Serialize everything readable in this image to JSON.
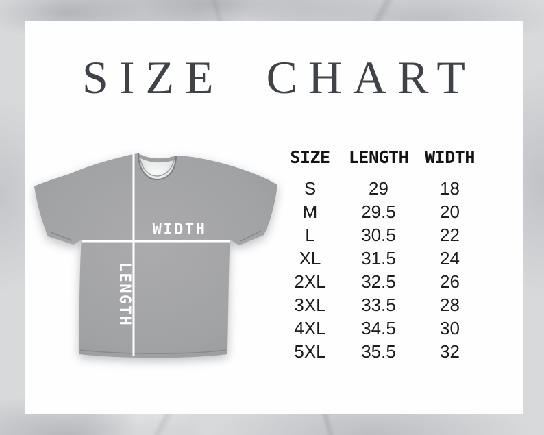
{
  "page": {
    "title": "SIZE CHART"
  },
  "shirt": {
    "width_label": "WIDTH",
    "length_label": "LENGTH"
  },
  "size_table": {
    "headers": [
      "SIZE",
      "LENGTH",
      "WIDTH"
    ]
  },
  "chart_data": {
    "type": "table",
    "title": "SIZE CHART",
    "columns": [
      "SIZE",
      "LENGTH",
      "WIDTH"
    ],
    "rows": [
      [
        "S",
        "29",
        "18"
      ],
      [
        "M",
        "29.5",
        "20"
      ],
      [
        "L",
        "30.5",
        "22"
      ],
      [
        "XL",
        "31.5",
        "24"
      ],
      [
        "2XL",
        "32.5",
        "26"
      ],
      [
        "3XL",
        "33.5",
        "28"
      ],
      [
        "4XL",
        "34.5",
        "30"
      ],
      [
        "5XL",
        "35.5",
        "32"
      ]
    ]
  },
  "colors": {
    "marble_background": "#d8d9db",
    "panel_background": "#fefefe",
    "title_text": "#3f4247",
    "table_text": "#1c1c1e",
    "shirt_gray": "#a1a2a4",
    "measurement_line": "#ffffff"
  }
}
